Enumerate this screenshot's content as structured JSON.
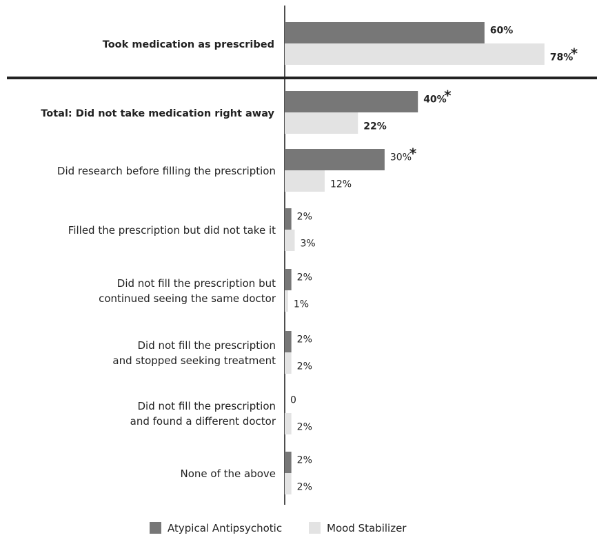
{
  "chart_data": {
    "type": "bar",
    "orientation": "horizontal",
    "categories": [
      "Took medication as prescribed",
      "Total: Did not take medication right away",
      "Did research before filling the prescription",
      "Filled the prescription but did not take it",
      "Did not fill the prescription but continued seeing the same doctor",
      "Did not fill the prescription and stopped seeking treatment",
      "Did not fill the prescription and found a different doctor",
      "None of the above"
    ],
    "category_lines": [
      [
        "Took medication as prescribed"
      ],
      [
        "Total: Did not take medication right away"
      ],
      [
        "Did research before filling the prescription"
      ],
      [
        "Filled the prescription but did not take it"
      ],
      [
        "Did not fill the prescription but",
        "continued seeing the same doctor"
      ],
      [
        "Did not fill the prescription",
        "and stopped seeking treatment"
      ],
      [
        "Did not fill the prescription",
        "and found a different doctor"
      ],
      [
        "None of the above"
      ]
    ],
    "bold_categories": [
      true,
      true,
      false,
      false,
      false,
      false,
      false,
      false
    ],
    "series": [
      {
        "name": "Atypical Antipsychotic",
        "color": "#777777",
        "values": [
          60,
          40,
          30,
          2,
          2,
          2,
          0,
          2
        ],
        "labels": [
          "60%",
          "40%",
          "30%",
          "2%",
          "2%",
          "2%",
          "0",
          "2%"
        ],
        "significant": [
          false,
          true,
          true,
          false,
          false,
          false,
          false,
          false
        ]
      },
      {
        "name": "Mood Stabilizer",
        "color": "#e3e3e3",
        "values": [
          78,
          22,
          12,
          3,
          1,
          2,
          2,
          2
        ],
        "labels": [
          "78%",
          "22%",
          "12%",
          "3%",
          "1%",
          "2%",
          "2%",
          "2%"
        ],
        "significant": [
          true,
          false,
          false,
          false,
          false,
          false,
          false,
          false
        ]
      }
    ],
    "significance_marker": "*",
    "xlim": [
      0,
      80
    ],
    "grid": false,
    "legend_position": "bottom-center"
  }
}
